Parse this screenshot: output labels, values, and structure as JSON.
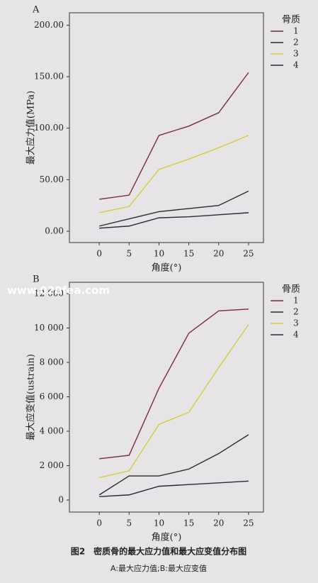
{
  "chart_data": [
    {
      "type": "line",
      "label": "A",
      "xlabel": "角度(°)",
      "ylabel": "最大应力值(MPa)",
      "legend_title": "骨质",
      "x": [
        0,
        5,
        10,
        15,
        20,
        25
      ],
      "xlim": [
        -5,
        27.5
      ],
      "xticks": [
        0,
        5,
        10,
        15,
        20,
        25
      ],
      "ylim": [
        -11,
        212
      ],
      "yticks": [
        {
          "value": 0,
          "label": "0.00"
        },
        {
          "value": 50,
          "label": "50.00"
        },
        {
          "value": 100,
          "label": "100.00"
        },
        {
          "value": 150,
          "label": "150.00"
        },
        {
          "value": 200,
          "label": "200.00"
        }
      ],
      "grid": false,
      "legend": "right",
      "series": [
        {
          "name": "1",
          "color": "#7a2a3c",
          "values": [
            31,
            35,
            93,
            102,
            115,
            154
          ]
        },
        {
          "name": "2",
          "color": "#2b2b2b",
          "values": [
            5,
            12,
            19,
            22,
            25,
            39
          ]
        },
        {
          "name": "3",
          "color": "#d6ca34",
          "values": [
            18,
            24,
            60,
            70,
            81,
            93
          ]
        },
        {
          "name": "4",
          "color": "#262a3c",
          "values": [
            3,
            5,
            13,
            14,
            16,
            18
          ]
        }
      ]
    },
    {
      "type": "line",
      "label": "B",
      "xlabel": "角度(°)",
      "ylabel": "最大应变值(ustrain)",
      "legend_title": "骨质",
      "x": [
        0,
        5,
        10,
        15,
        20,
        25
      ],
      "xlim": [
        -5,
        27.5
      ],
      "xticks": [
        0,
        5,
        10,
        15,
        20,
        25
      ],
      "ylim": [
        -700,
        12660
      ],
      "yticks": [
        0,
        {
          "value": 2000,
          "label": "2 000"
        },
        {
          "value": 4000,
          "label": "4 000"
        },
        {
          "value": 6000,
          "label": "6 000"
        },
        {
          "value": 8000,
          "label": "8 000"
        },
        {
          "value": 10000,
          "label": "10 000"
        },
        {
          "value": 12000,
          "label": "12 000"
        }
      ],
      "grid": false,
      "legend": "right",
      "series": [
        {
          "name": "1",
          "color": "#7a2a3c",
          "values": [
            2400,
            2600,
            6500,
            9700,
            11000,
            11100
          ]
        },
        {
          "name": "2",
          "color": "#2b2b2b",
          "values": [
            300,
            1400,
            1400,
            1800,
            2700,
            3800
          ]
        },
        {
          "name": "3",
          "color": "#d6ca34",
          "values": [
            1300,
            1700,
            4400,
            5100,
            7700,
            10200
          ]
        },
        {
          "name": "4",
          "color": "#262a3c",
          "values": [
            200,
            300,
            800,
            900,
            1000,
            1100
          ]
        }
      ]
    }
  ],
  "figure": {
    "title": "图2　密质骨的最大应力值和最大应变值分布图",
    "subtitle": "A:最大应力值;B:最大应变值"
  },
  "watermark": "www.020fea.com"
}
